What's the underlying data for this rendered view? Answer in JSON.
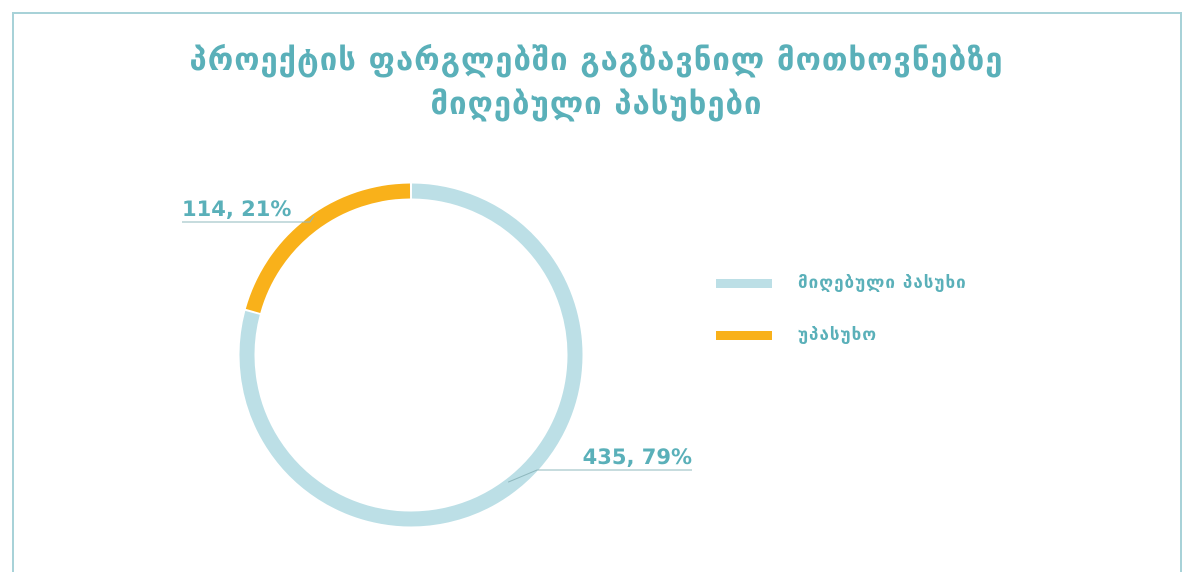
{
  "chart_data": {
    "type": "pie",
    "title_lines": [
      "პროექტის ფარგლებში გაგზავნილ მოთხოვნებზე",
      "მიღებული პასუხები"
    ],
    "slices": [
      {
        "name": "მიღებული პასუხი",
        "value": 435,
        "percent": 79,
        "label": "435, 79%",
        "color": "#bcdfe6"
      },
      {
        "name": "უპასუხო",
        "value": 114,
        "percent": 21,
        "label": "114, 21%",
        "color": "#f9b11a"
      }
    ],
    "legend_position": "right",
    "donut": true
  },
  "colors": {
    "title": "#5ab0b9",
    "label_text": "#5ab0b9",
    "frame": "#a8d2d8"
  }
}
